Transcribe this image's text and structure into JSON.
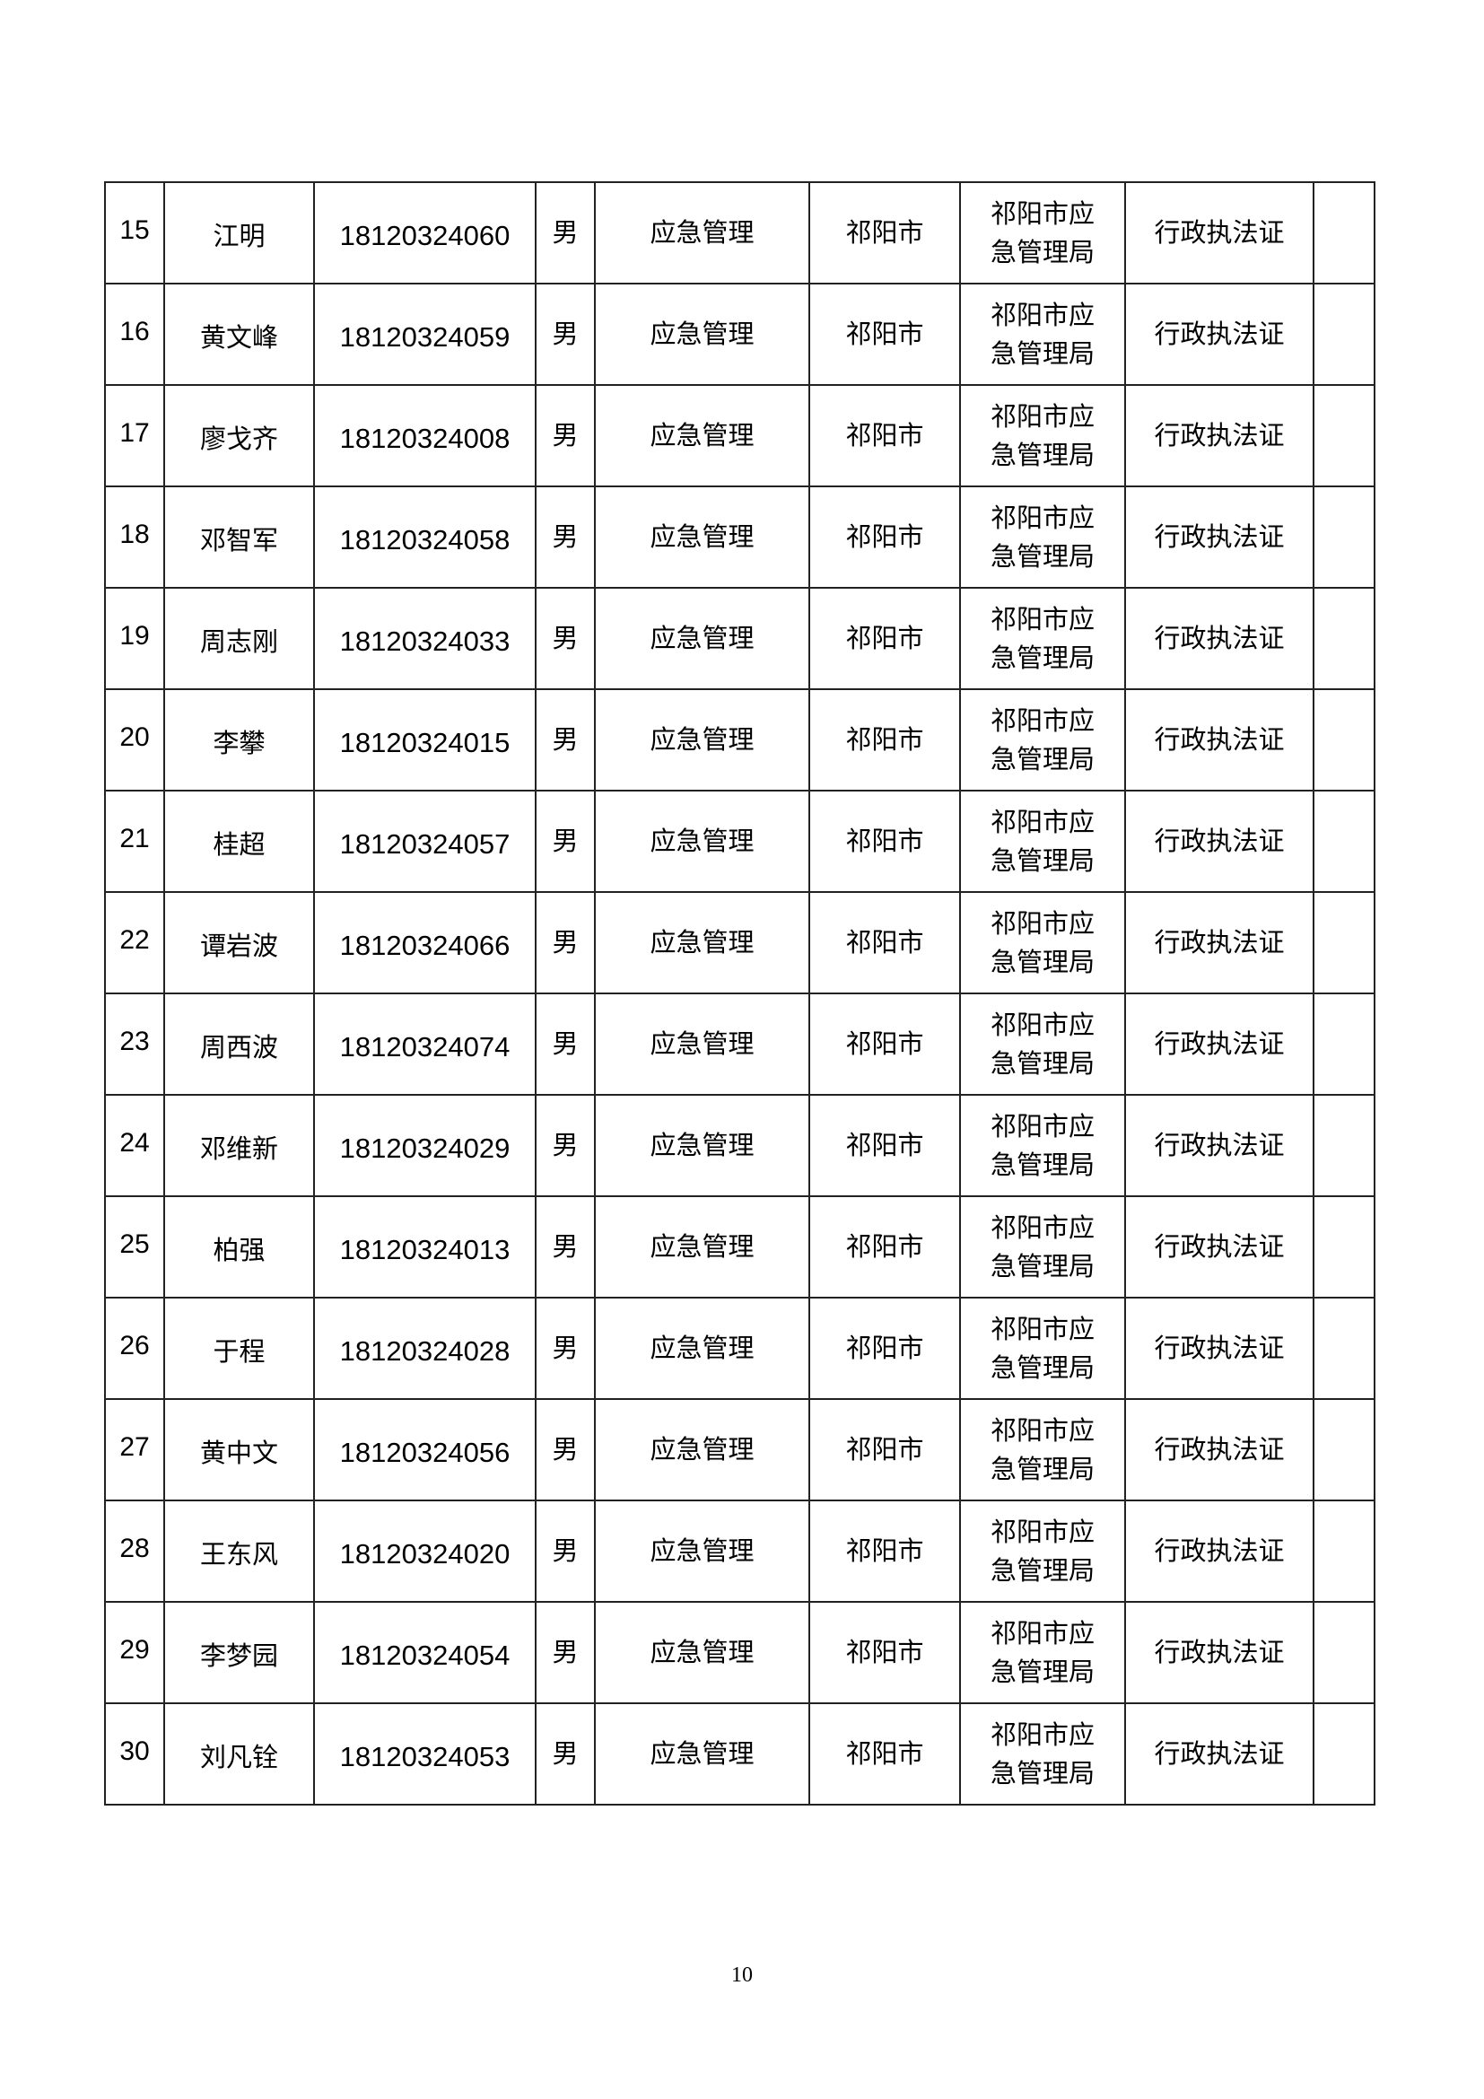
{
  "rows": [
    {
      "no": "15",
      "name": "江明",
      "id": "18120324060",
      "gender": "男",
      "field": "应急管理",
      "region": "祁阳市",
      "unit": "祁阳市应急管理局",
      "cert": "行政执法证",
      "remark": ""
    },
    {
      "no": "16",
      "name": "黄文峰",
      "id": "18120324059",
      "gender": "男",
      "field": "应急管理",
      "region": "祁阳市",
      "unit": "祁阳市应急管理局",
      "cert": "行政执法证",
      "remark": ""
    },
    {
      "no": "17",
      "name": "廖戈齐",
      "id": "18120324008",
      "gender": "男",
      "field": "应急管理",
      "region": "祁阳市",
      "unit": "祁阳市应急管理局",
      "cert": "行政执法证",
      "remark": ""
    },
    {
      "no": "18",
      "name": "邓智军",
      "id": "18120324058",
      "gender": "男",
      "field": "应急管理",
      "region": "祁阳市",
      "unit": "祁阳市应急管理局",
      "cert": "行政执法证",
      "remark": ""
    },
    {
      "no": "19",
      "name": "周志刚",
      "id": "18120324033",
      "gender": "男",
      "field": "应急管理",
      "region": "祁阳市",
      "unit": "祁阳市应急管理局",
      "cert": "行政执法证",
      "remark": ""
    },
    {
      "no": "20",
      "name": "李攀",
      "id": "18120324015",
      "gender": "男",
      "field": "应急管理",
      "region": "祁阳市",
      "unit": "祁阳市应急管理局",
      "cert": "行政执法证",
      "remark": ""
    },
    {
      "no": "21",
      "name": "桂超",
      "id": "18120324057",
      "gender": "男",
      "field": "应急管理",
      "region": "祁阳市",
      "unit": "祁阳市应急管理局",
      "cert": "行政执法证",
      "remark": ""
    },
    {
      "no": "22",
      "name": "谭岩波",
      "id": "18120324066",
      "gender": "男",
      "field": "应急管理",
      "region": "祁阳市",
      "unit": "祁阳市应急管理局",
      "cert": "行政执法证",
      "remark": ""
    },
    {
      "no": "23",
      "name": "周西波",
      "id": "18120324074",
      "gender": "男",
      "field": "应急管理",
      "region": "祁阳市",
      "unit": "祁阳市应急管理局",
      "cert": "行政执法证",
      "remark": ""
    },
    {
      "no": "24",
      "name": "邓维新",
      "id": "18120324029",
      "gender": "男",
      "field": "应急管理",
      "region": "祁阳市",
      "unit": "祁阳市应急管理局",
      "cert": "行政执法证",
      "remark": ""
    },
    {
      "no": "25",
      "name": "柏强",
      "id": "18120324013",
      "gender": "男",
      "field": "应急管理",
      "region": "祁阳市",
      "unit": "祁阳市应急管理局",
      "cert": "行政执法证",
      "remark": ""
    },
    {
      "no": "26",
      "name": "于程",
      "id": "18120324028",
      "gender": "男",
      "field": "应急管理",
      "region": "祁阳市",
      "unit": "祁阳市应急管理局",
      "cert": "行政执法证",
      "remark": ""
    },
    {
      "no": "27",
      "name": "黄中文",
      "id": "18120324056",
      "gender": "男",
      "field": "应急管理",
      "region": "祁阳市",
      "unit": "祁阳市应急管理局",
      "cert": "行政执法证",
      "remark": ""
    },
    {
      "no": "28",
      "name": "王东风",
      "id": "18120324020",
      "gender": "男",
      "field": "应急管理",
      "region": "祁阳市",
      "unit": "祁阳市应急管理局",
      "cert": "行政执法证",
      "remark": ""
    },
    {
      "no": "29",
      "name": "李梦园",
      "id": "18120324054",
      "gender": "男",
      "field": "应急管理",
      "region": "祁阳市",
      "unit": "祁阳市应急管理局",
      "cert": "行政执法证",
      "remark": ""
    },
    {
      "no": "30",
      "name": "刘凡铨",
      "id": "18120324053",
      "gender": "男",
      "field": "应急管理",
      "region": "祁阳市",
      "unit": "祁阳市应急管理局",
      "cert": "行政执法证",
      "remark": ""
    }
  ],
  "page_number": "10"
}
